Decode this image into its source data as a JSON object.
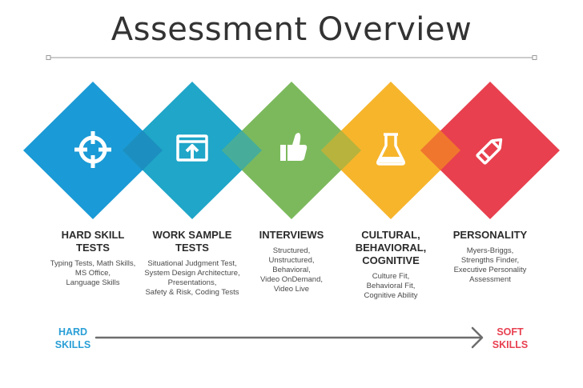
{
  "title": "Assessment Overview",
  "colors": {
    "blue": "#1a9ad6",
    "teal": "#2eaec0",
    "green": "#7cb95d",
    "yellow": "#f7b52c",
    "red": "#e8404e",
    "hard_skills": "#2a9fd6",
    "soft_skills": "#e84050"
  },
  "stages": [
    {
      "name": "HARD SKILL\nTESTS",
      "description": "Typing Tests, Math Skills,\nMS Office,\nLanguage Skills",
      "icon": "crosshair-icon"
    },
    {
      "name": "WORK SAMPLE\nTESTS",
      "description": "Situational Judgment Test,\nSystem Design Architecture,\nPresentations,\nSafety & Risk, Coding Tests",
      "icon": "browser-upload-icon"
    },
    {
      "name": "INTERVIEWS",
      "description": "Structured,\nUnstructured,\nBehavioral,\nVideo OnDemand,\nVideo Live",
      "icon": "thumbs-up-icon"
    },
    {
      "name": "CULTURAL,\nBEHAVIORAL,\nCOGNITIVE",
      "description": "Culture Fit,\nBehavioral Fit,\nCognitive Ability",
      "icon": "flask-icon"
    },
    {
      "name": "PERSONALITY",
      "description": "Myers-Briggs,\nStrengths Finder,\nExecutive Personality\nAssessment",
      "icon": "pencil-icon"
    }
  ],
  "scale": {
    "left_label": "HARD\nSKILLS",
    "right_label": "SOFT\nSKILLS"
  }
}
